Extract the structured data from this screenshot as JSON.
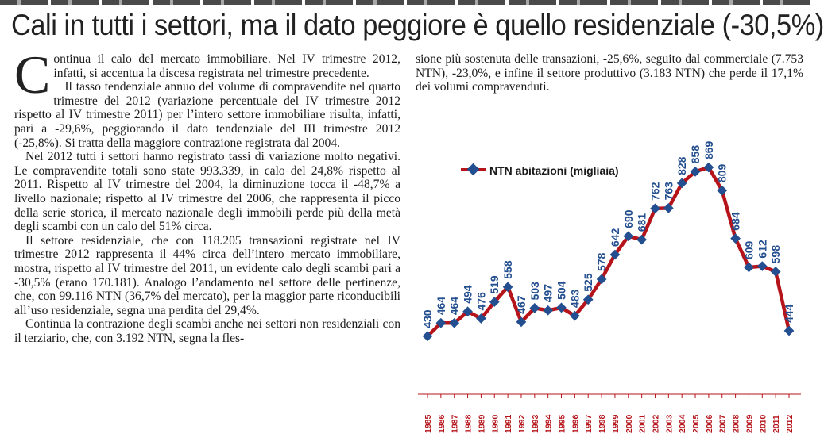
{
  "headline": "Cali in tutti i settori, ma il dato peggiore è quello residenziale (-30,5%)",
  "left_column": {
    "dropcap": "C",
    "paragraphs": [
      "ontinua il calo del mercato immobiliare. Nel IV trimestre 2012, infatti, si accentua la discesa registrata nel trimestre precedente.",
      "Il tasso tendenziale annuo del volume di compravendite nel quarto trimestre del 2012 (variazione percentuale del IV trimestre 2012 rispetto al IV trimestre 2011) per l’intero settore immobiliare risulta, infatti, pari a -29,6%, peggiorando il dato tendenziale del III trimestre 2012 (-25,8%). Si tratta della maggiore contrazione registrata dal 2004.",
      "Nel 2012 tutti i settori hanno registrato tassi di variazione molto negativi. Le compravendite totali sono state 993.339, in calo del 24,8% rispetto al 2011. Rispetto al IV trimestre del 2004, la diminuzione tocca il -48,7% a livello nazionale; rispetto al IV trimestre del 2006, che rappresenta il picco della serie storica, il mercato nazionale degli immobili perde più della metà degli scambi con un calo del 51% circa.",
      "Il settore residenziale, che con 118.205 transazioni registrate nel IV trimestre 2012 rappresenta il 44% circa dell’intero mercato immobiliare, mostra, rispetto al IV trimestre del 2011, un evidente calo degli scambi pari a -30,5% (erano 170.181). Analogo l’andamento nel settore delle pertinenze, che, con 99.116 NTN (36,7% del mercato), per la maggior parte riconducibili all’uso residenziale, segna una perdita del 29,4%.",
      "Continua la contrazione degli scambi anche nei settori non residenziali con il terziario, che, con 3.192 NTN, segna la fles-"
    ]
  },
  "right_column": {
    "paragraph": "sione più sostenuta delle transazioni, -25,6%, seguito dal commerciale (7.753 NTN), -23,0%, e infine il settore produttivo (3.183 NTN) che perde il 17,1% dei volumi compravenduti."
  },
  "chart_data": {
    "type": "line",
    "legend": "NTN abitazioni (migliaia)",
    "legend_position": "top-left",
    "x": [
      "1985",
      "1986",
      "1987",
      "1988",
      "1989",
      "1990",
      "1991",
      "1992",
      "1993",
      "1994",
      "1995",
      "1996",
      "1997",
      "1998",
      "1999",
      "2000",
      "2001",
      "2002",
      "2003",
      "2004",
      "2005",
      "2006",
      "2007",
      "2008",
      "2009",
      "2010",
      "2011",
      "2012"
    ],
    "values": [
      430,
      464,
      464,
      494,
      476,
      519,
      558,
      467,
      503,
      497,
      504,
      483,
      525,
      578,
      642,
      690,
      681,
      762,
      763,
      828,
      858,
      869,
      809,
      684,
      609,
      612,
      598,
      444
    ],
    "ylim": [
      380,
      900
    ],
    "grid": false,
    "colors": {
      "line": "#b5141b",
      "marker": "#234e8f",
      "label": "#234e8f",
      "xtick": "#b5141b"
    }
  }
}
